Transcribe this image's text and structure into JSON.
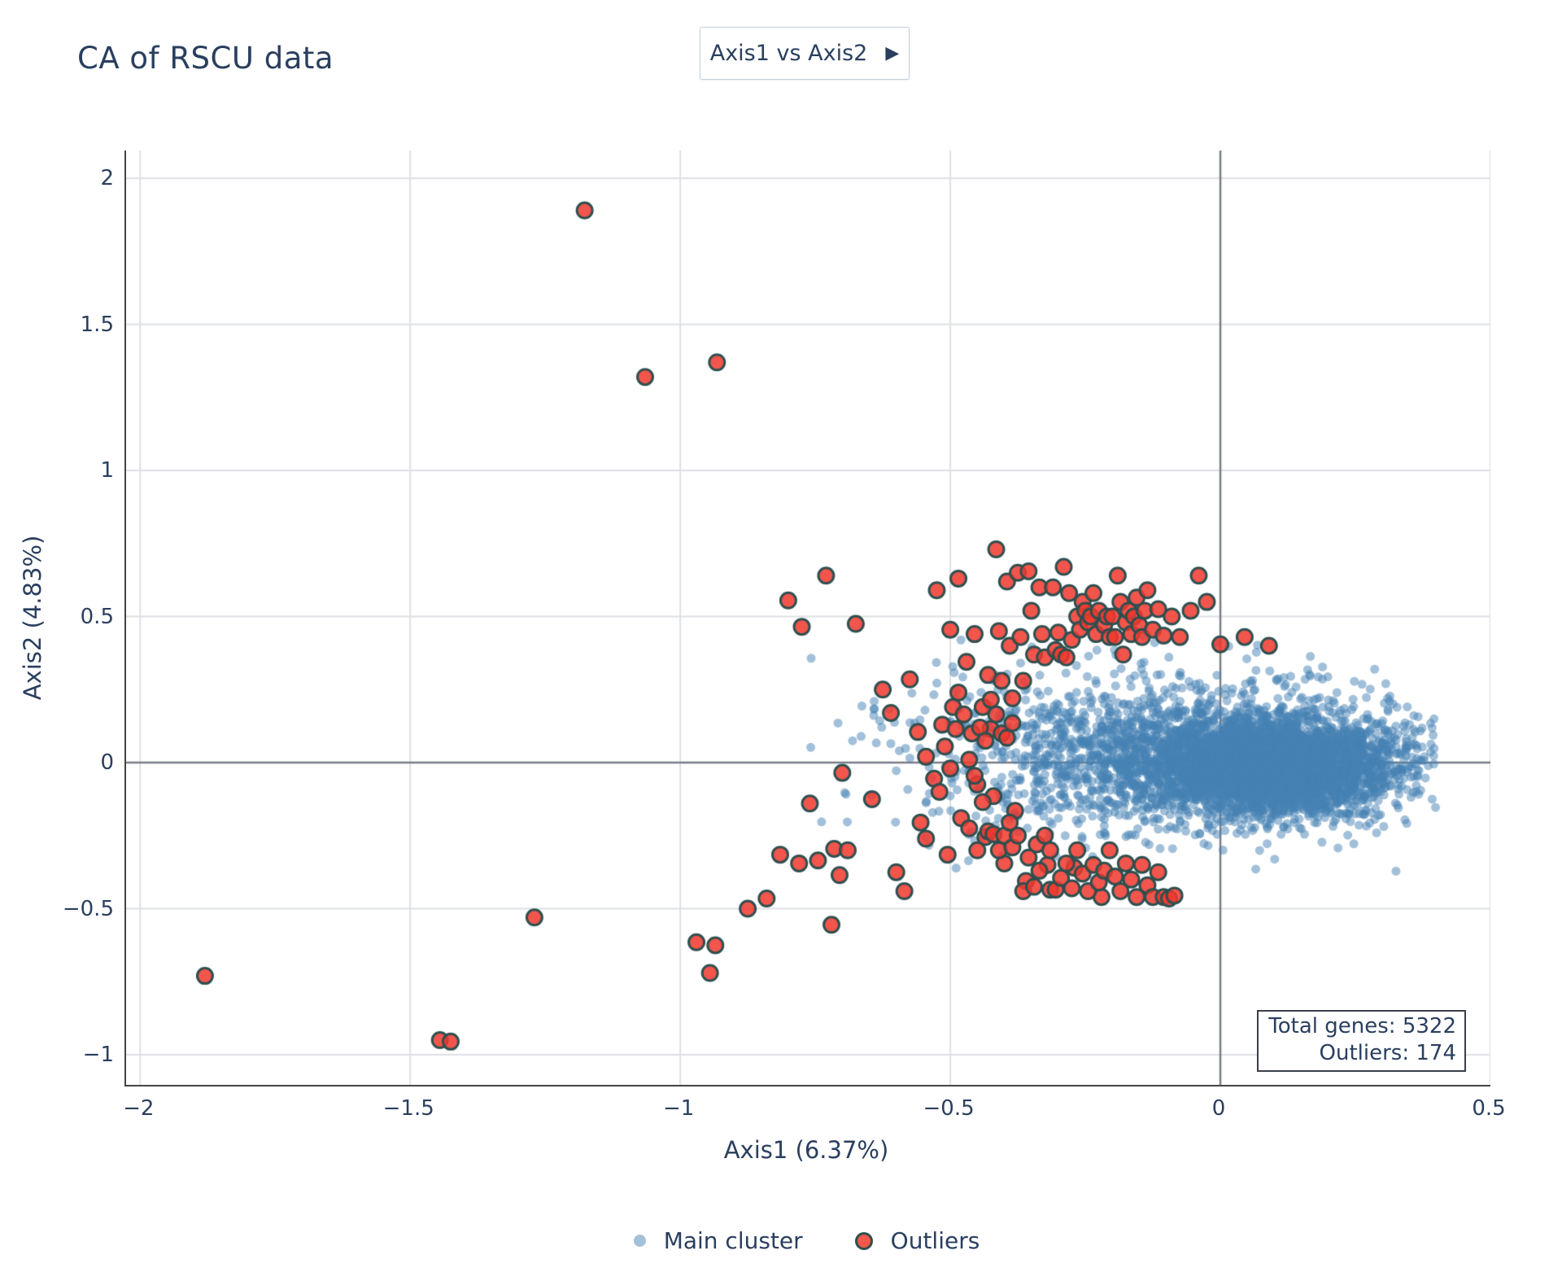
{
  "header": {
    "title": "CA of RSCU data"
  },
  "controls": {
    "axis_selector": {
      "label": "Axis1 vs Axis2",
      "arrow_icon": "▶"
    }
  },
  "annotation_box": {
    "line1": "Total genes: 5322",
    "line2": "Outliers: 174"
  },
  "legend": {
    "position": "bottom-center",
    "items": [
      {
        "label": "Main cluster",
        "marker": "blue-dot"
      },
      {
        "label": "Outliers",
        "marker": "red-ring-dot"
      }
    ]
  },
  "colors": {
    "text": "#2a3f5f",
    "axis_line": "#444444",
    "grid": "#dddfe4",
    "zeroline": "#787d86",
    "main_cluster_fill": "rgba(70,130,180,0.5)",
    "outlier_fill": "rgba(240,55,45,0.85)",
    "outlier_edge": "#2f4f4f",
    "button_border": "#c4cede"
  },
  "chart_data": {
    "type": "scatter",
    "title": "CA of RSCU data",
    "xlabel": "Axis1 (6.37%)",
    "ylabel": "Axis2 (4.83%)",
    "xlim": [
      -2.026,
      0.5
    ],
    "ylim": [
      -1.103,
      2.095
    ],
    "x_ticks": [
      -2,
      -1.5,
      -1,
      -0.5,
      0,
      0.5
    ],
    "x_tick_labels": [
      "−2",
      "−1.5",
      "−1",
      "−0.5",
      "0",
      "0.5"
    ],
    "y_ticks": [
      -1,
      -0.5,
      0,
      0.5,
      1,
      1.5,
      2
    ],
    "y_tick_labels": [
      "−1",
      "−0.5",
      "0",
      "0.5",
      "1",
      "1.5",
      "2"
    ],
    "grid": true,
    "zerolines": true,
    "total_genes": 5322,
    "outlier_count": 174,
    "series": [
      {
        "name": "Main cluster",
        "render": "generated",
        "count": 5148,
        "marker_radius": 5.5,
        "color": "rgba(70,130,180,0.5)",
        "seed": 123456,
        "components": [
          {
            "weight": 0.66,
            "cx": 0.095,
            "cy": -0.012,
            "sx": 0.115,
            "sy": 0.082
          },
          {
            "weight": 0.24,
            "cx": -0.04,
            "cy": 0.02,
            "sx": 0.19,
            "sy": 0.125
          },
          {
            "weight": 0.1,
            "cx": -0.26,
            "cy": 0.05,
            "sx": 0.2,
            "sy": 0.16
          }
        ],
        "clip": {
          "x": [
            -0.78,
            0.4
          ],
          "y": [
            -0.47,
            0.44
          ]
        }
      },
      {
        "name": "Outliers",
        "render": "points",
        "count": 174,
        "marker_radius": 9.5,
        "fill": "rgba(240,55,45,0.85)",
        "edge_color": "#2f4f4f",
        "edge_width": 3,
        "points": [
          [
            -1.88,
            -0.73
          ],
          [
            -1.445,
            -0.95
          ],
          [
            -1.425,
            -0.955
          ],
          [
            -1.27,
            -0.53
          ],
          [
            -1.177,
            1.89
          ],
          [
            -1.065,
            1.32
          ],
          [
            -0.932,
            1.37
          ],
          [
            -0.97,
            -0.615
          ],
          [
            -0.935,
            -0.625
          ],
          [
            -0.945,
            -0.72
          ],
          [
            -0.875,
            -0.5
          ],
          [
            -0.84,
            -0.465
          ],
          [
            -0.815,
            -0.315
          ],
          [
            -0.78,
            -0.345
          ],
          [
            -0.745,
            -0.335
          ],
          [
            -0.8,
            0.555
          ],
          [
            -0.775,
            0.465
          ],
          [
            -0.73,
            0.64
          ],
          [
            -0.72,
            -0.555
          ],
          [
            -0.705,
            -0.385
          ],
          [
            -0.715,
            -0.295
          ],
          [
            -0.69,
            -0.3
          ],
          [
            -0.76,
            -0.14
          ],
          [
            -0.675,
            0.475
          ],
          [
            -0.7,
            -0.035
          ],
          [
            -0.645,
            -0.125
          ],
          [
            -0.625,
            0.25
          ],
          [
            -0.6,
            -0.375
          ],
          [
            -0.585,
            -0.44
          ],
          [
            -0.61,
            0.17
          ],
          [
            -0.575,
            0.285
          ],
          [
            -0.56,
            0.105
          ],
          [
            -0.555,
            -0.205
          ],
          [
            -0.545,
            -0.26
          ],
          [
            -0.525,
            0.59
          ],
          [
            -0.515,
            0.13
          ],
          [
            -0.505,
            -0.315
          ],
          [
            -0.5,
            0.455
          ],
          [
            -0.49,
            0.115
          ],
          [
            -0.485,
            0.63
          ],
          [
            -0.47,
            0.345
          ],
          [
            -0.46,
            0.1
          ],
          [
            -0.455,
            0.44
          ],
          [
            -0.45,
            -0.075
          ],
          [
            -0.44,
            0.19
          ],
          [
            -0.435,
            -0.255
          ],
          [
            -0.43,
            0.3
          ],
          [
            -0.425,
            0.115
          ],
          [
            -0.42,
            -0.115
          ],
          [
            -0.415,
            0.73
          ],
          [
            -0.41,
            0.45
          ],
          [
            -0.405,
            0.1
          ],
          [
            -0.4,
            -0.345
          ],
          [
            -0.395,
            0.62
          ],
          [
            -0.39,
            0.4
          ],
          [
            -0.385,
            0.22
          ],
          [
            -0.38,
            -0.165
          ],
          [
            -0.375,
            0.65
          ],
          [
            -0.37,
            0.43
          ],
          [
            -0.365,
            0.28
          ],
          [
            -0.36,
            -0.405
          ],
          [
            -0.355,
            0.655
          ],
          [
            -0.35,
            0.52
          ],
          [
            -0.345,
            0.37
          ],
          [
            -0.34,
            -0.28
          ],
          [
            -0.335,
            0.6
          ],
          [
            -0.33,
            0.44
          ],
          [
            -0.325,
            0.36
          ],
          [
            -0.32,
            -0.35
          ],
          [
            -0.315,
            -0.435
          ],
          [
            -0.31,
            0.6
          ],
          [
            -0.305,
            0.385
          ],
          [
            -0.3,
            0.445
          ],
          [
            -0.295,
            0.37
          ],
          [
            -0.29,
            0.67
          ],
          [
            -0.285,
            0.36
          ],
          [
            -0.28,
            0.58
          ],
          [
            -0.275,
            0.42
          ],
          [
            -0.27,
            -0.36
          ],
          [
            -0.265,
            0.5
          ],
          [
            -0.26,
            0.455
          ],
          [
            -0.255,
            0.55
          ],
          [
            -0.25,
            0.52
          ],
          [
            -0.245,
            0.48
          ],
          [
            -0.24,
            0.5
          ],
          [
            -0.235,
            0.58
          ],
          [
            -0.23,
            0.44
          ],
          [
            -0.225,
            0.52
          ],
          [
            -0.22,
            -0.46
          ],
          [
            -0.215,
            0.47
          ],
          [
            -0.21,
            0.5
          ],
          [
            -0.205,
            0.43
          ],
          [
            -0.2,
            0.5
          ],
          [
            -0.195,
            0.43
          ],
          [
            -0.19,
            0.64
          ],
          [
            -0.185,
            0.55
          ],
          [
            -0.18,
            0.37
          ],
          [
            -0.175,
            0.48
          ],
          [
            -0.17,
            0.52
          ],
          [
            -0.165,
            0.44
          ],
          [
            -0.16,
            0.5
          ],
          [
            -0.155,
            0.565
          ],
          [
            -0.15,
            0.47
          ],
          [
            -0.145,
            0.43
          ],
          [
            -0.14,
            0.52
          ],
          [
            -0.135,
            0.59
          ],
          [
            -0.125,
            0.455
          ],
          [
            -0.115,
            0.525
          ],
          [
            -0.105,
            0.435
          ],
          [
            -0.09,
            0.5
          ],
          [
            -0.075,
            0.43
          ],
          [
            -0.055,
            0.52
          ],
          [
            -0.04,
            0.64
          ],
          [
            -0.025,
            0.55
          ],
          [
            0.0,
            0.405
          ],
          [
            0.045,
            0.43
          ],
          [
            0.09,
            0.4
          ],
          [
            -0.48,
            -0.19
          ],
          [
            -0.465,
            -0.225
          ],
          [
            -0.45,
            -0.3
          ],
          [
            -0.44,
            -0.135
          ],
          [
            -0.43,
            -0.235
          ],
          [
            -0.42,
            -0.245
          ],
          [
            -0.41,
            -0.3
          ],
          [
            -0.4,
            -0.25
          ],
          [
            -0.39,
            -0.205
          ],
          [
            -0.385,
            -0.29
          ],
          [
            -0.375,
            -0.25
          ],
          [
            -0.365,
            -0.44
          ],
          [
            -0.355,
            -0.325
          ],
          [
            -0.345,
            -0.425
          ],
          [
            -0.335,
            -0.37
          ],
          [
            -0.325,
            -0.25
          ],
          [
            -0.315,
            -0.3
          ],
          [
            -0.305,
            -0.435
          ],
          [
            -0.295,
            -0.395
          ],
          [
            -0.285,
            -0.345
          ],
          [
            -0.275,
            -0.43
          ],
          [
            -0.265,
            -0.3
          ],
          [
            -0.255,
            -0.38
          ],
          [
            -0.245,
            -0.44
          ],
          [
            -0.235,
            -0.35
          ],
          [
            -0.225,
            -0.41
          ],
          [
            -0.215,
            -0.37
          ],
          [
            -0.205,
            -0.3
          ],
          [
            -0.195,
            -0.39
          ],
          [
            -0.185,
            -0.44
          ],
          [
            -0.175,
            -0.345
          ],
          [
            -0.165,
            -0.4
          ],
          [
            -0.155,
            -0.46
          ],
          [
            -0.145,
            -0.35
          ],
          [
            -0.135,
            -0.42
          ],
          [
            -0.125,
            -0.46
          ],
          [
            -0.115,
            -0.375
          ],
          [
            -0.105,
            -0.46
          ],
          [
            -0.095,
            -0.465
          ],
          [
            -0.085,
            -0.455
          ],
          [
            -0.545,
            0.02
          ],
          [
            -0.53,
            -0.055
          ],
          [
            -0.52,
            -0.1
          ],
          [
            -0.51,
            0.055
          ],
          [
            -0.5,
            -0.02
          ],
          [
            -0.495,
            0.19
          ],
          [
            -0.485,
            0.24
          ],
          [
            -0.475,
            0.165
          ],
          [
            -0.465,
            0.01
          ],
          [
            -0.455,
            -0.045
          ],
          [
            -0.445,
            0.12
          ],
          [
            -0.435,
            0.075
          ],
          [
            -0.425,
            0.215
          ],
          [
            -0.415,
            0.165
          ],
          [
            -0.405,
            0.28
          ],
          [
            -0.395,
            0.085
          ],
          [
            -0.385,
            0.135
          ]
        ]
      }
    ],
    "annotations": [
      {
        "lines": [
          "Total genes: 5322",
          "Outliers: 174"
        ],
        "align": "right",
        "position": "bottom-right"
      }
    ]
  }
}
